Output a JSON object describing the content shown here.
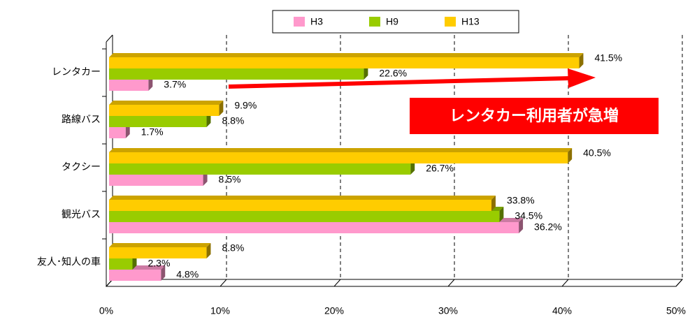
{
  "chart_data": {
    "type": "bar",
    "orientation": "horizontal",
    "categories": [
      "レンタカー",
      "路線バス",
      "タクシー",
      "観光バス",
      "友人･知人の車"
    ],
    "series": [
      {
        "name": "H3",
        "color": "#ff99cc",
        "values": [
          3.7,
          1.7,
          8.5,
          36.2,
          4.8
        ],
        "value_labels": [
          "3.7%",
          "1.7%",
          "8.5%",
          "36.2%",
          "4.8%"
        ]
      },
      {
        "name": "H9",
        "color": "#99cc00",
        "values": [
          22.6,
          8.8,
          26.7,
          34.5,
          2.3
        ],
        "value_labels": [
          "22.6%",
          "8.8%",
          "26.7%",
          "34.5%",
          "2.3%"
        ]
      },
      {
        "name": "H13",
        "color": "#ffcc00",
        "values": [
          41.5,
          9.9,
          40.5,
          33.8,
          8.8
        ],
        "value_labels": [
          "41.5%",
          "9.9%",
          "40.5%",
          "33.8%",
          "8.8%"
        ]
      }
    ],
    "xlim": [
      0,
      50
    ],
    "xticks": [
      {
        "value": 0,
        "label": "0%"
      },
      {
        "value": 10,
        "label": "10%"
      },
      {
        "value": 20,
        "label": "20%"
      },
      {
        "value": 30,
        "label": "30%"
      },
      {
        "value": 40,
        "label": "40%"
      },
      {
        "value": 50,
        "label": "50%"
      }
    ],
    "grid": true,
    "legend": "top",
    "annotation": "レンタカー利用者が急増"
  }
}
